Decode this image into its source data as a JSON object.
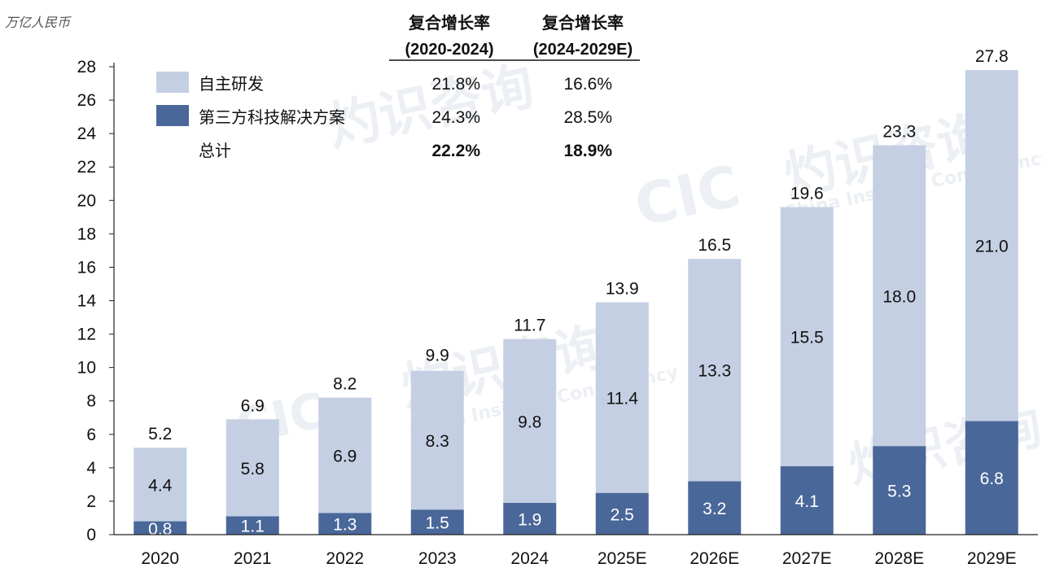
{
  "unit_label": "万亿人民币",
  "watermark": {
    "cn": "灼识咨询",
    "logo": "CIC",
    "en": "China Insights Consultancy"
  },
  "cagr_table": {
    "headers": [
      {
        "line1": "复合增长率",
        "line2": "(2020-2024)"
      },
      {
        "line1": "复合增长率",
        "line2": "(2024-2029E)"
      }
    ],
    "rows": [
      {
        "label": "自主研发",
        "values": [
          "21.8%",
          "16.6%"
        ],
        "swatch": "#c4cfe3",
        "bold": false
      },
      {
        "label": "第三方科技解决方案",
        "values": [
          "24.3%",
          "28.5%"
        ],
        "swatch": "#4a6799",
        "bold": false
      },
      {
        "label": "总计",
        "values": [
          "22.2%",
          "18.9%"
        ],
        "swatch": null,
        "bold": true
      }
    ]
  },
  "chart_data": {
    "type": "bar",
    "stacked": true,
    "categories": [
      "2020",
      "2021",
      "2022",
      "2023",
      "2024",
      "2025E",
      "2026E",
      "2027E",
      "2028E",
      "2029E"
    ],
    "series": [
      {
        "name": "第三方科技解决方案",
        "color": "#4a6799",
        "label_color": "#ffffff",
        "values": [
          0.8,
          1.1,
          1.3,
          1.5,
          1.9,
          2.5,
          3.2,
          4.1,
          5.3,
          6.8
        ]
      },
      {
        "name": "自主研发",
        "color": "#c4cfe3",
        "label_color": "#111111",
        "values": [
          4.4,
          5.8,
          6.9,
          8.3,
          9.8,
          11.4,
          13.3,
          15.5,
          18.0,
          21.0
        ]
      }
    ],
    "totals": [
      5.2,
      6.9,
      8.2,
      9.9,
      11.7,
      13.9,
      16.5,
      19.6,
      23.3,
      27.8
    ],
    "ylim": [
      0,
      28
    ],
    "yticks": [
      0,
      2,
      4,
      6,
      8,
      10,
      12,
      14,
      16,
      18,
      20,
      22,
      24,
      26,
      28
    ],
    "grid": false,
    "legend_position": "top-left"
  }
}
